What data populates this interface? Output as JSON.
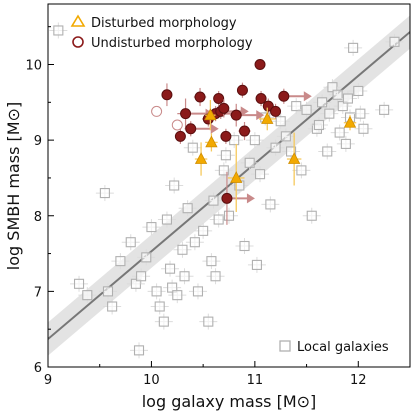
{
  "chart_data": {
    "type": "scatter",
    "title": "",
    "xlabel": "log galaxy mass [M⊙]",
    "ylabel": "log SMBH mass [M⊙]",
    "xlim": [
      9,
      12.5
    ],
    "ylim": [
      6,
      10.8
    ],
    "xticks": [
      "9",
      "10",
      "11",
      "12"
    ],
    "yticks": [
      "6",
      "7",
      "8",
      "9",
      "10"
    ],
    "grid": false,
    "legend_top": {
      "placement": "top-left",
      "entries": [
        "Disturbed morphology",
        "Undisturbed morphology"
      ]
    },
    "legend_bottom": {
      "placement": "bottom-right",
      "entries": [
        "Local galaxies"
      ]
    },
    "relation": {
      "x": [
        9,
        12.5
      ],
      "y": [
        6.37,
        10.43
      ],
      "band_halfwidth": 0.22
    },
    "colors": {
      "disturbed": "#f2a900",
      "undisturbed": "#8b1a1a",
      "local": "#b0b0b0",
      "relation_line": "#777777",
      "relation_band": "#d9d9d9"
    },
    "series": [
      {
        "name": "Disturbed morphology",
        "marker": "triangle",
        "points": [
          {
            "x": 10.48,
            "y": 8.75,
            "ex": 0.06,
            "ey": 0.22
          },
          {
            "x": 10.58,
            "y": 8.97,
            "ex": 0.06,
            "ey": 0.12
          },
          {
            "x": 10.57,
            "y": 9.33,
            "ex": 0.05,
            "ey": 0.2
          },
          {
            "x": 10.82,
            "y": 8.5,
            "ex": 0.08,
            "ey": 0.45
          },
          {
            "x": 11.12,
            "y": 9.28,
            "ex": 0.08,
            "ey": 0.15
          },
          {
            "x": 11.38,
            "y": 8.75,
            "ex": 0.07,
            "ey": 0.35
          },
          {
            "x": 11.92,
            "y": 9.23,
            "ex": 0.06,
            "ey": 0.1
          }
        ]
      },
      {
        "name": "Undisturbed morphology",
        "marker": "circle",
        "points": [
          {
            "x": 10.15,
            "y": 9.6,
            "ex": 0.05,
            "ey": 0.15,
            "arrow": false
          },
          {
            "x": 10.05,
            "y": 9.38,
            "ex": 0,
            "ey": 0,
            "arrow": false,
            "open": true
          },
          {
            "x": 10.25,
            "y": 9.2,
            "ex": 0,
            "ey": 0,
            "arrow": false,
            "open": true
          },
          {
            "x": 10.28,
            "y": 9.05,
            "ex": 0.05,
            "ey": 0.1,
            "arrow": false
          },
          {
            "x": 10.33,
            "y": 9.35,
            "ex": 0.08,
            "ey": 0.2,
            "arrow": true
          },
          {
            "x": 10.38,
            "y": 9.15,
            "ex": 0.06,
            "ey": 0.1,
            "arrow": true
          },
          {
            "x": 10.47,
            "y": 9.57,
            "ex": 0.06,
            "ey": 0.12,
            "arrow": false
          },
          {
            "x": 10.55,
            "y": 9.28,
            "ex": 0.06,
            "ey": 0.1,
            "arrow": false
          },
          {
            "x": 10.62,
            "y": 9.35,
            "ex": 0.05,
            "ey": 0.1,
            "arrow": true
          },
          {
            "x": 10.65,
            "y": 9.55,
            "ex": 0.05,
            "ey": 0.1,
            "arrow": false
          },
          {
            "x": 10.67,
            "y": 9.38,
            "ex": 0.05,
            "ey": 0.1,
            "arrow": true
          },
          {
            "x": 10.7,
            "y": 9.42,
            "ex": 0.05,
            "ey": 0.12,
            "arrow": false
          },
          {
            "x": 10.72,
            "y": 9.05,
            "ex": 0.05,
            "ey": 0.1,
            "arrow": false
          },
          {
            "x": 10.73,
            "y": 8.23,
            "ex": 0.05,
            "ey": 0.35,
            "arrow": true
          },
          {
            "x": 10.82,
            "y": 9.33,
            "ex": 0.06,
            "ey": 0.15,
            "arrow": true
          },
          {
            "x": 10.88,
            "y": 9.66,
            "ex": 0.05,
            "ey": 0.1,
            "arrow": false
          },
          {
            "x": 10.9,
            "y": 9.12,
            "ex": 0.06,
            "ey": 0.12,
            "arrow": false
          },
          {
            "x": 11.05,
            "y": 10.0,
            "ex": 0.04,
            "ey": 0.05,
            "arrow": false
          },
          {
            "x": 11.06,
            "y": 9.55,
            "ex": 0.05,
            "ey": 0.1,
            "arrow": false
          },
          {
            "x": 11.13,
            "y": 9.45,
            "ex": 0.05,
            "ey": 0.1,
            "arrow": false
          },
          {
            "x": 11.2,
            "y": 9.38,
            "ex": 0.05,
            "ey": 0.1,
            "arrow": false
          },
          {
            "x": 11.28,
            "y": 9.58,
            "ex": 0.05,
            "ey": 0.1,
            "arrow": true
          }
        ]
      },
      {
        "name": "Local galaxies",
        "marker": "square",
        "points": [
          {
            "x": 9.1,
            "y": 10.45
          },
          {
            "x": 9.3,
            "y": 7.1
          },
          {
            "x": 9.38,
            "y": 6.95
          },
          {
            "x": 9.55,
            "y": 8.3
          },
          {
            "x": 9.58,
            "y": 7.0
          },
          {
            "x": 9.62,
            "y": 6.8
          },
          {
            "x": 9.7,
            "y": 7.4
          },
          {
            "x": 9.8,
            "y": 7.65
          },
          {
            "x": 9.85,
            "y": 7.1
          },
          {
            "x": 9.88,
            "y": 6.22
          },
          {
            "x": 9.9,
            "y": 7.2
          },
          {
            "x": 9.95,
            "y": 7.45
          },
          {
            "x": 10.0,
            "y": 7.85
          },
          {
            "x": 10.05,
            "y": 7.0
          },
          {
            "x": 10.08,
            "y": 6.8
          },
          {
            "x": 10.12,
            "y": 6.6
          },
          {
            "x": 10.15,
            "y": 7.95
          },
          {
            "x": 10.18,
            "y": 7.3
          },
          {
            "x": 10.2,
            "y": 7.05
          },
          {
            "x": 10.22,
            "y": 8.4
          },
          {
            "x": 10.25,
            "y": 6.95
          },
          {
            "x": 10.3,
            "y": 7.55
          },
          {
            "x": 10.32,
            "y": 7.2
          },
          {
            "x": 10.35,
            "y": 8.1
          },
          {
            "x": 10.4,
            "y": 8.9
          },
          {
            "x": 10.42,
            "y": 7.65
          },
          {
            "x": 10.45,
            "y": 7.0
          },
          {
            "x": 10.5,
            "y": 7.8
          },
          {
            "x": 10.55,
            "y": 6.6
          },
          {
            "x": 10.58,
            "y": 7.4
          },
          {
            "x": 10.6,
            "y": 8.2
          },
          {
            "x": 10.62,
            "y": 7.2
          },
          {
            "x": 10.65,
            "y": 7.95
          },
          {
            "x": 10.7,
            "y": 8.6
          },
          {
            "x": 10.72,
            "y": 8.8
          },
          {
            "x": 10.75,
            "y": 8.0
          },
          {
            "x": 10.8,
            "y": 9.0
          },
          {
            "x": 10.85,
            "y": 8.4
          },
          {
            "x": 10.9,
            "y": 7.6
          },
          {
            "x": 10.95,
            "y": 8.7
          },
          {
            "x": 11.0,
            "y": 9.0
          },
          {
            "x": 11.02,
            "y": 7.35
          },
          {
            "x": 11.05,
            "y": 8.55
          },
          {
            "x": 11.1,
            "y": 9.3
          },
          {
            "x": 11.15,
            "y": 8.15
          },
          {
            "x": 11.2,
            "y": 8.9
          },
          {
            "x": 11.25,
            "y": 9.25
          },
          {
            "x": 11.3,
            "y": 9.05
          },
          {
            "x": 11.35,
            "y": 8.85
          },
          {
            "x": 11.4,
            "y": 9.45
          },
          {
            "x": 11.45,
            "y": 8.6
          },
          {
            "x": 11.5,
            "y": 9.4
          },
          {
            "x": 11.55,
            "y": 8.0
          },
          {
            "x": 11.6,
            "y": 9.15
          },
          {
            "x": 11.62,
            "y": 9.2
          },
          {
            "x": 11.65,
            "y": 9.5
          },
          {
            "x": 11.7,
            "y": 8.85
          },
          {
            "x": 11.72,
            "y": 9.35
          },
          {
            "x": 11.75,
            "y": 9.7
          },
          {
            "x": 11.8,
            "y": 9.6
          },
          {
            "x": 11.82,
            "y": 9.1
          },
          {
            "x": 11.85,
            "y": 9.45
          },
          {
            "x": 11.88,
            "y": 8.95
          },
          {
            "x": 11.9,
            "y": 9.55
          },
          {
            "x": 11.92,
            "y": 9.3
          },
          {
            "x": 11.95,
            "y": 10.22
          },
          {
            "x": 12.0,
            "y": 9.65
          },
          {
            "x": 12.02,
            "y": 9.35
          },
          {
            "x": 12.05,
            "y": 9.15
          },
          {
            "x": 12.25,
            "y": 9.4
          },
          {
            "x": 12.35,
            "y": 10.3
          }
        ]
      }
    ]
  }
}
